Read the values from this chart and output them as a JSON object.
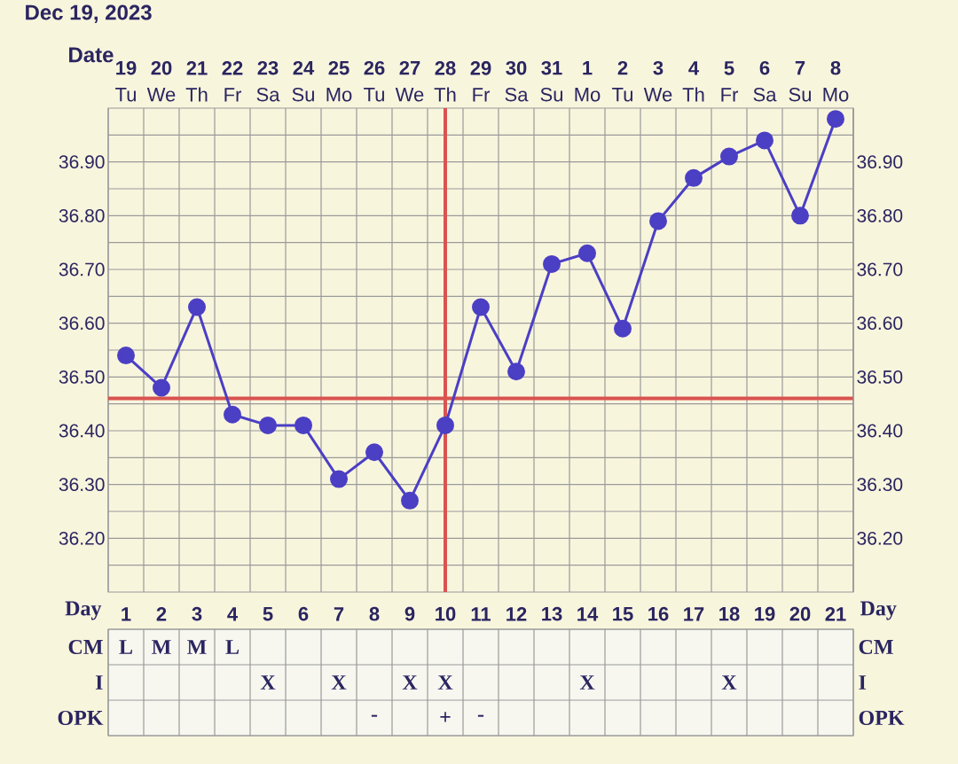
{
  "chart_data": [
    {
      "type": "line",
      "title": "Dec 19, 2023",
      "xlabel": "Date",
      "categories": [
        "**19** Tu",
        "**20** We",
        "**21** Th",
        "**22** Fr",
        "**23** Sa",
        "**24** Su",
        "**25** Mo",
        "**26** Tu",
        "**27** We",
        "**28** Th",
        "**29** Fr",
        "**30** Sa",
        "**31** Su",
        "**1** Mo",
        "**2** Tu",
        "**3** We",
        "**4** Th",
        "**5** Fr",
        "**6** Sa",
        "**7** Su",
        "**8** Mo"
      ],
      "values": [
        36.54,
        36.48,
        36.63,
        36.43,
        36.41,
        36.41,
        36.31,
        36.36,
        36.27,
        36.41,
        36.63,
        36.51,
        36.71,
        36.73,
        36.59,
        36.79,
        36.87,
        36.91,
        36.94,
        36.8,
        36.98
      ],
      "color": "#4b3fc4",
      "marker": "circle",
      "grid": true,
      "ylim": [
        36.1,
        37.0
      ],
      "yticks": [
        {
          "value": 36.2,
          "label": "36.20"
        },
        {
          "value": 36.3,
          "label": "36.30"
        },
        {
          "value": 36.4,
          "label": "36.40"
        },
        {
          "value": 36.5,
          "label": "36.50"
        },
        {
          "value": 36.6,
          "label": "36.60"
        },
        {
          "value": 36.7,
          "label": "36.70"
        },
        {
          "value": 36.8,
          "label": "36.80"
        },
        {
          "value": 36.9,
          "label": "36.90"
        }
      ],
      "y2lim": [
        36.1,
        37.0
      ],
      "y2ticks": [
        {
          "value": 36.2,
          "label": "36.20"
        },
        {
          "value": 36.3,
          "label": "36.30"
        },
        {
          "value": 36.4,
          "label": "36.40"
        },
        {
          "value": 36.5,
          "label": "36.50"
        },
        {
          "value": 36.6,
          "label": "36.60"
        },
        {
          "value": 36.7,
          "label": "36.70"
        },
        {
          "value": 36.8,
          "label": "36.80"
        },
        {
          "value": 36.9,
          "label": "36.90"
        }
      ],
      "ref_lines": [
        {
          "axis": "y",
          "value": 36.46,
          "color": "#d9534f"
        },
        {
          "axis": "x",
          "value": "**28** Th",
          "color": "#d9534f"
        }
      ]
    },
    {
      "type": "heatmap",
      "xlabel": "Day",
      "categories": [
        "1",
        "2",
        "3",
        "4",
        "5",
        "6",
        "7",
        "8",
        "9",
        "10",
        "11",
        "12",
        "13",
        "14",
        "15",
        "16",
        "17",
        "18",
        "19",
        "20",
        "21"
      ],
      "y_categories": [
        "CM",
        "I",
        "OPK"
      ],
      "y2_categories": [
        "CM",
        "I",
        "OPK"
      ],
      "cells": [
        [
          null,
          null,
          null,
          null,
          null,
          null,
          null,
          null,
          null,
          null,
          null,
          null,
          null,
          null,
          null,
          null,
          null,
          null,
          null,
          null,
          null
        ],
        [
          null,
          null,
          null,
          null,
          null,
          null,
          null,
          null,
          null,
          null,
          null,
          null,
          null,
          null,
          null,
          null,
          null,
          null,
          null,
          null,
          null
        ],
        [
          null,
          null,
          null,
          null,
          null,
          null,
          null,
          null,
          null,
          null,
          null,
          null,
          null,
          null,
          null,
          null,
          null,
          null,
          null,
          null,
          null
        ]
      ],
      "cell_labels": [
        [
          "L",
          "M",
          "M",
          "L",
          null,
          null,
          null,
          null,
          null,
          null,
          null,
          null,
          null,
          null,
          null,
          null,
          null,
          null,
          null,
          null,
          null
        ],
        [
          null,
          null,
          null,
          null,
          "X",
          null,
          "X",
          null,
          "X",
          "X",
          null,
          null,
          null,
          "X",
          null,
          null,
          null,
          "X",
          null,
          null,
          null
        ],
        [
          null,
          null,
          null,
          null,
          null,
          null,
          null,
          "-",
          null,
          "+",
          "-",
          null,
          null,
          null,
          null,
          null,
          null,
          null,
          null,
          null,
          null
        ]
      ]
    }
  ]
}
